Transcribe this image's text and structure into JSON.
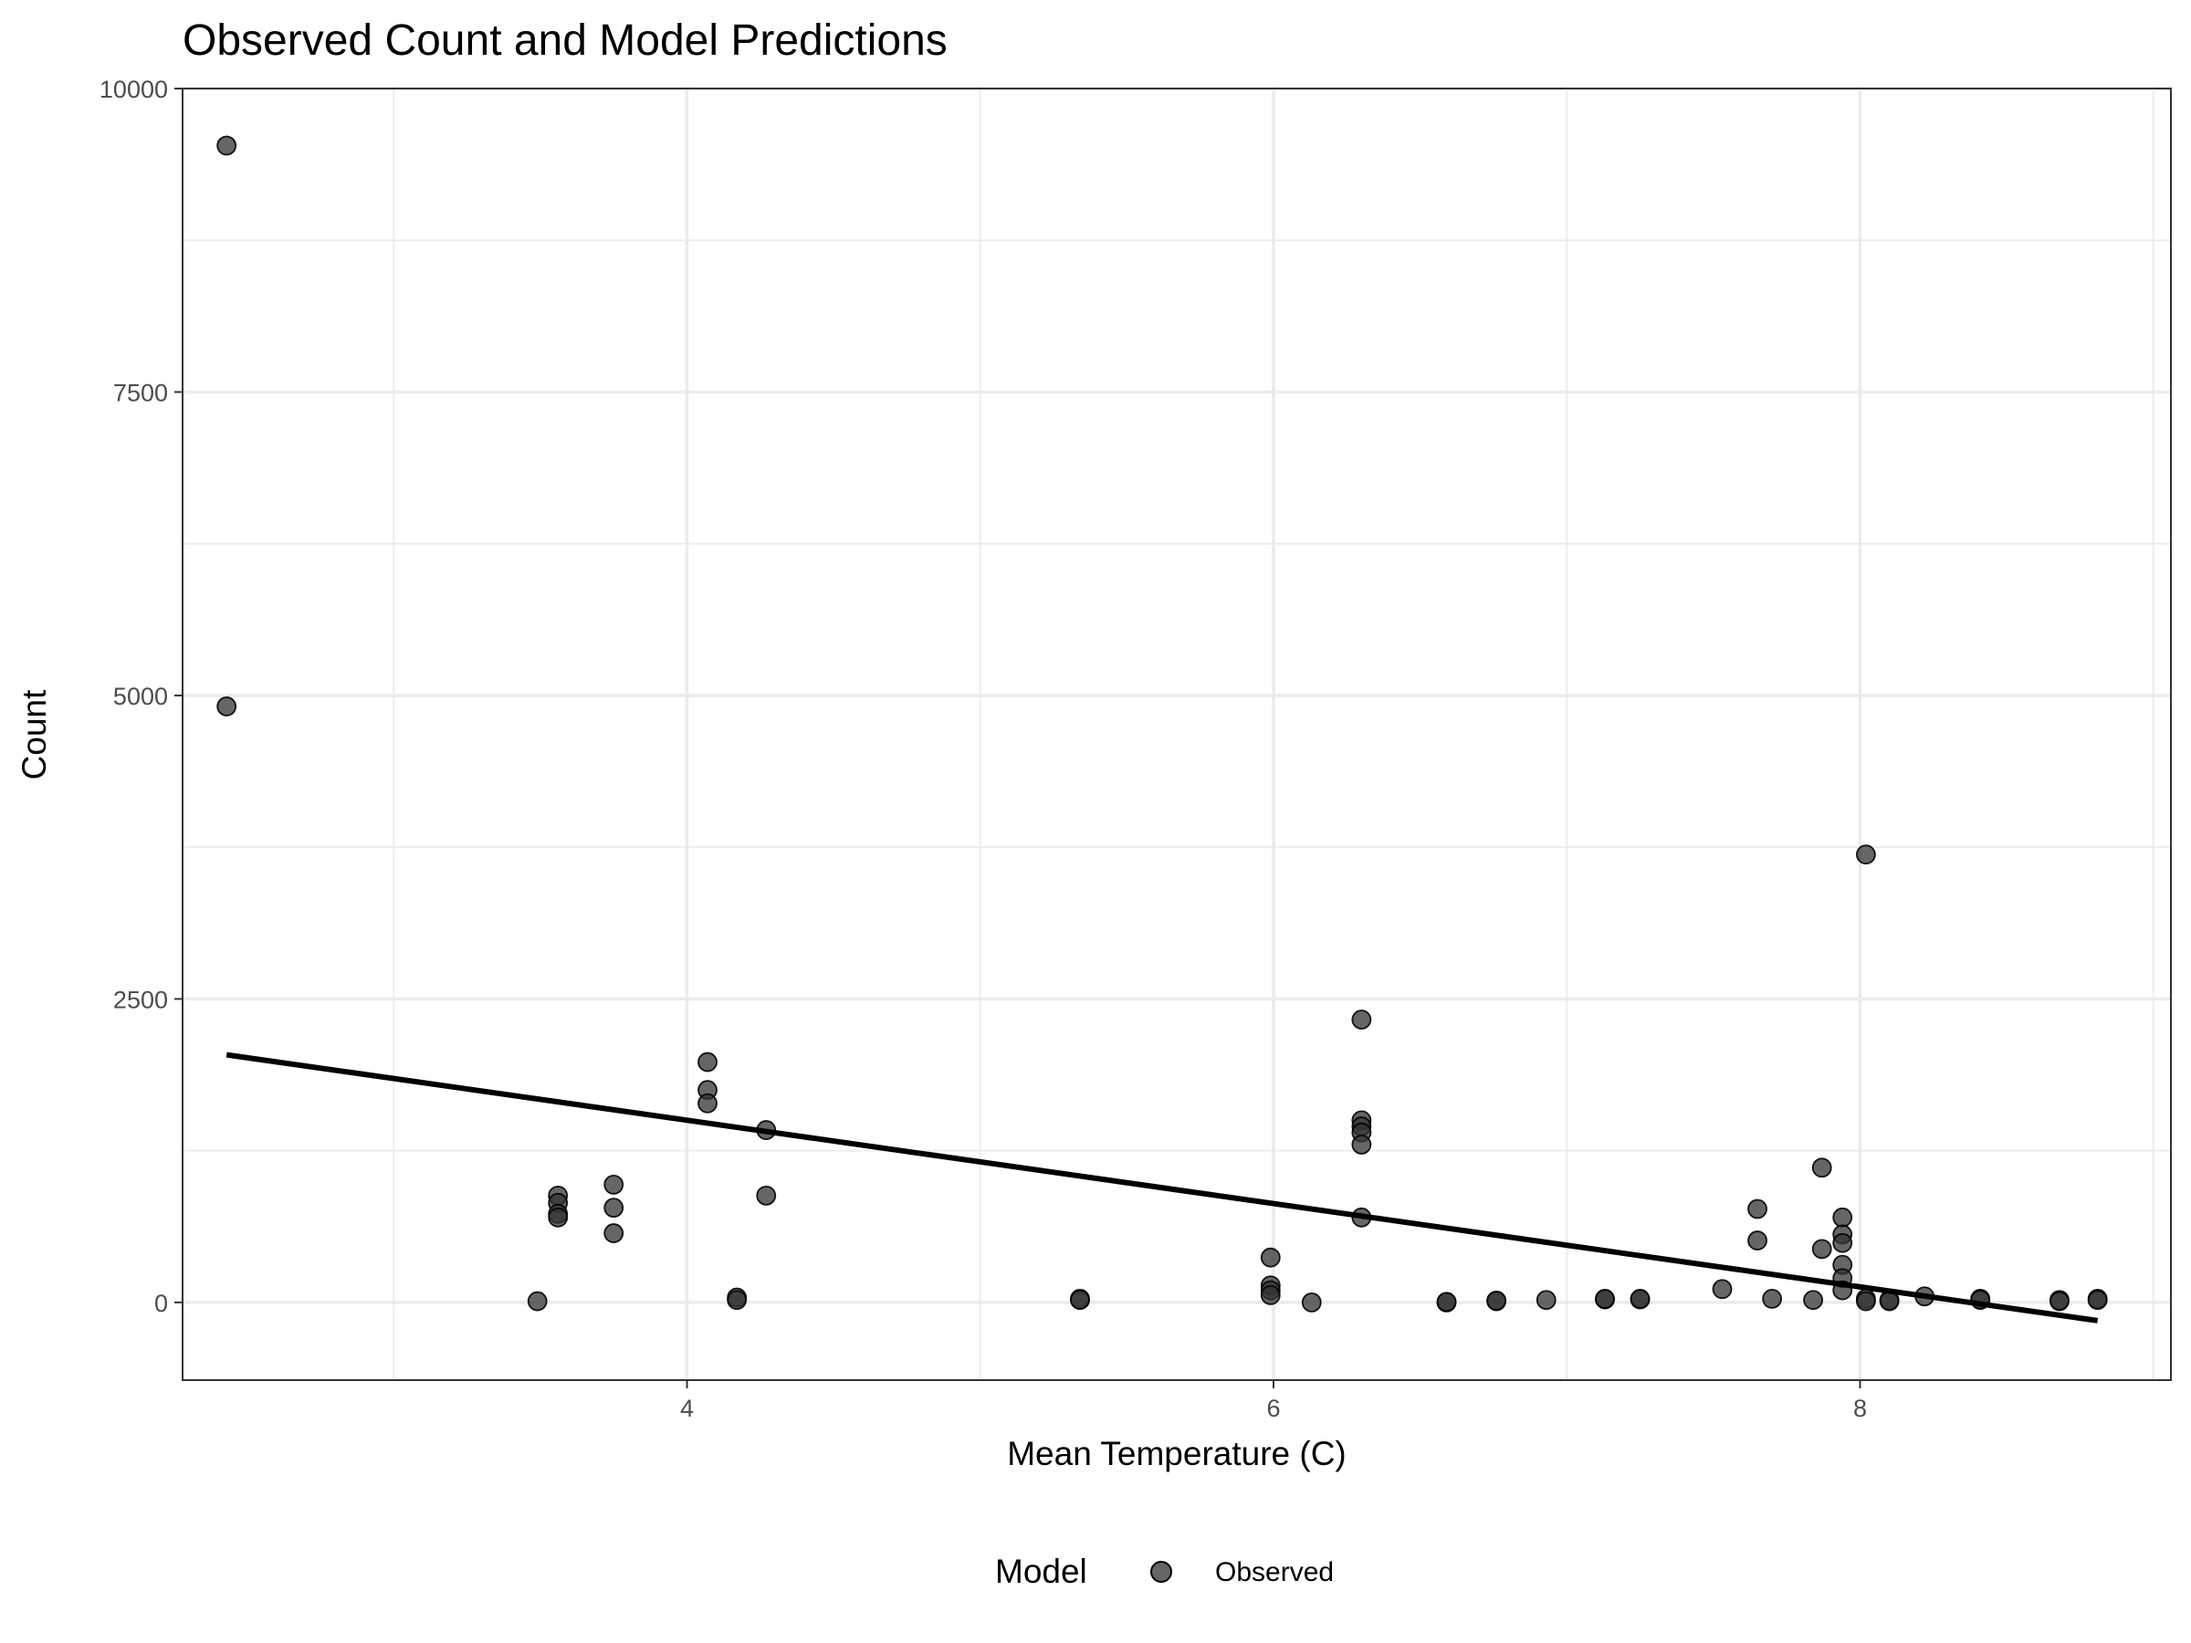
{
  "chart_data": {
    "type": "scatter",
    "title": "Observed Count and Model Predictions",
    "xlabel": "Mean Temperature (C)",
    "ylabel": "Count",
    "xlim": [
      2.28,
      9.06
    ],
    "ylim": [
      -640,
      10000
    ],
    "x_ticks": [
      4,
      6,
      8
    ],
    "x_tick_labels": [
      "4",
      "6",
      "8"
    ],
    "x_minor_ticks": [
      3,
      5,
      7,
      9
    ],
    "y_ticks": [
      0,
      2500,
      5000,
      7500,
      10000
    ],
    "y_tick_labels": [
      "0",
      "2500",
      "5000",
      "7500",
      "10000"
    ],
    "y_minor_ticks": [
      1250,
      3750,
      6250,
      8750
    ],
    "grid": true,
    "legend": {
      "title": "Model",
      "position": "bottom",
      "entries": [
        {
          "label": "Observed",
          "marker": "circle",
          "color": "#333333"
        }
      ]
    },
    "series": [
      {
        "name": "Observed",
        "kind": "points",
        "color": "#333333",
        "opacity": 0.75,
        "points": [
          [
            2.43,
            9530
          ],
          [
            2.43,
            4910
          ],
          [
            3.49,
            10
          ],
          [
            3.56,
            880
          ],
          [
            3.56,
            820
          ],
          [
            3.56,
            730
          ],
          [
            3.56,
            700
          ],
          [
            3.75,
            970
          ],
          [
            3.75,
            780
          ],
          [
            3.75,
            570
          ],
          [
            4.07,
            1980
          ],
          [
            4.07,
            1750
          ],
          [
            4.07,
            1640
          ],
          [
            4.17,
            40
          ],
          [
            4.17,
            20
          ],
          [
            4.27,
            1420
          ],
          [
            4.27,
            880
          ],
          [
            5.34,
            30
          ],
          [
            5.34,
            20
          ],
          [
            5.99,
            370
          ],
          [
            5.99,
            140
          ],
          [
            5.99,
            100
          ],
          [
            5.99,
            60
          ],
          [
            6.13,
            0
          ],
          [
            6.3,
            2330
          ],
          [
            6.3,
            1500
          ],
          [
            6.3,
            1450
          ],
          [
            6.3,
            1400
          ],
          [
            6.3,
            1300
          ],
          [
            6.3,
            700
          ],
          [
            6.59,
            0
          ],
          [
            6.59,
            5
          ],
          [
            6.76,
            10
          ],
          [
            6.76,
            15
          ],
          [
            6.93,
            20
          ],
          [
            7.13,
            25
          ],
          [
            7.13,
            30
          ],
          [
            7.25,
            25
          ],
          [
            7.25,
            30
          ],
          [
            7.53,
            110
          ],
          [
            7.65,
            770
          ],
          [
            7.65,
            510
          ],
          [
            7.7,
            30
          ],
          [
            7.84,
            20
          ],
          [
            7.87,
            1110
          ],
          [
            7.87,
            440
          ],
          [
            7.94,
            700
          ],
          [
            7.94,
            560
          ],
          [
            7.94,
            490
          ],
          [
            7.94,
            310
          ],
          [
            7.94,
            200
          ],
          [
            7.94,
            100
          ],
          [
            8.02,
            3690
          ],
          [
            8.02,
            30
          ],
          [
            8.02,
            10
          ],
          [
            8.1,
            20
          ],
          [
            8.1,
            10
          ],
          [
            8.22,
            50
          ],
          [
            8.41,
            30
          ],
          [
            8.41,
            20
          ],
          [
            8.68,
            20
          ],
          [
            8.68,
            10
          ],
          [
            8.81,
            30
          ],
          [
            8.81,
            20
          ]
        ]
      },
      {
        "name": "",
        "kind": "line",
        "color": "#000000",
        "points": [
          [
            2.43,
            2040
          ],
          [
            8.81,
            -150
          ]
        ]
      }
    ]
  }
}
